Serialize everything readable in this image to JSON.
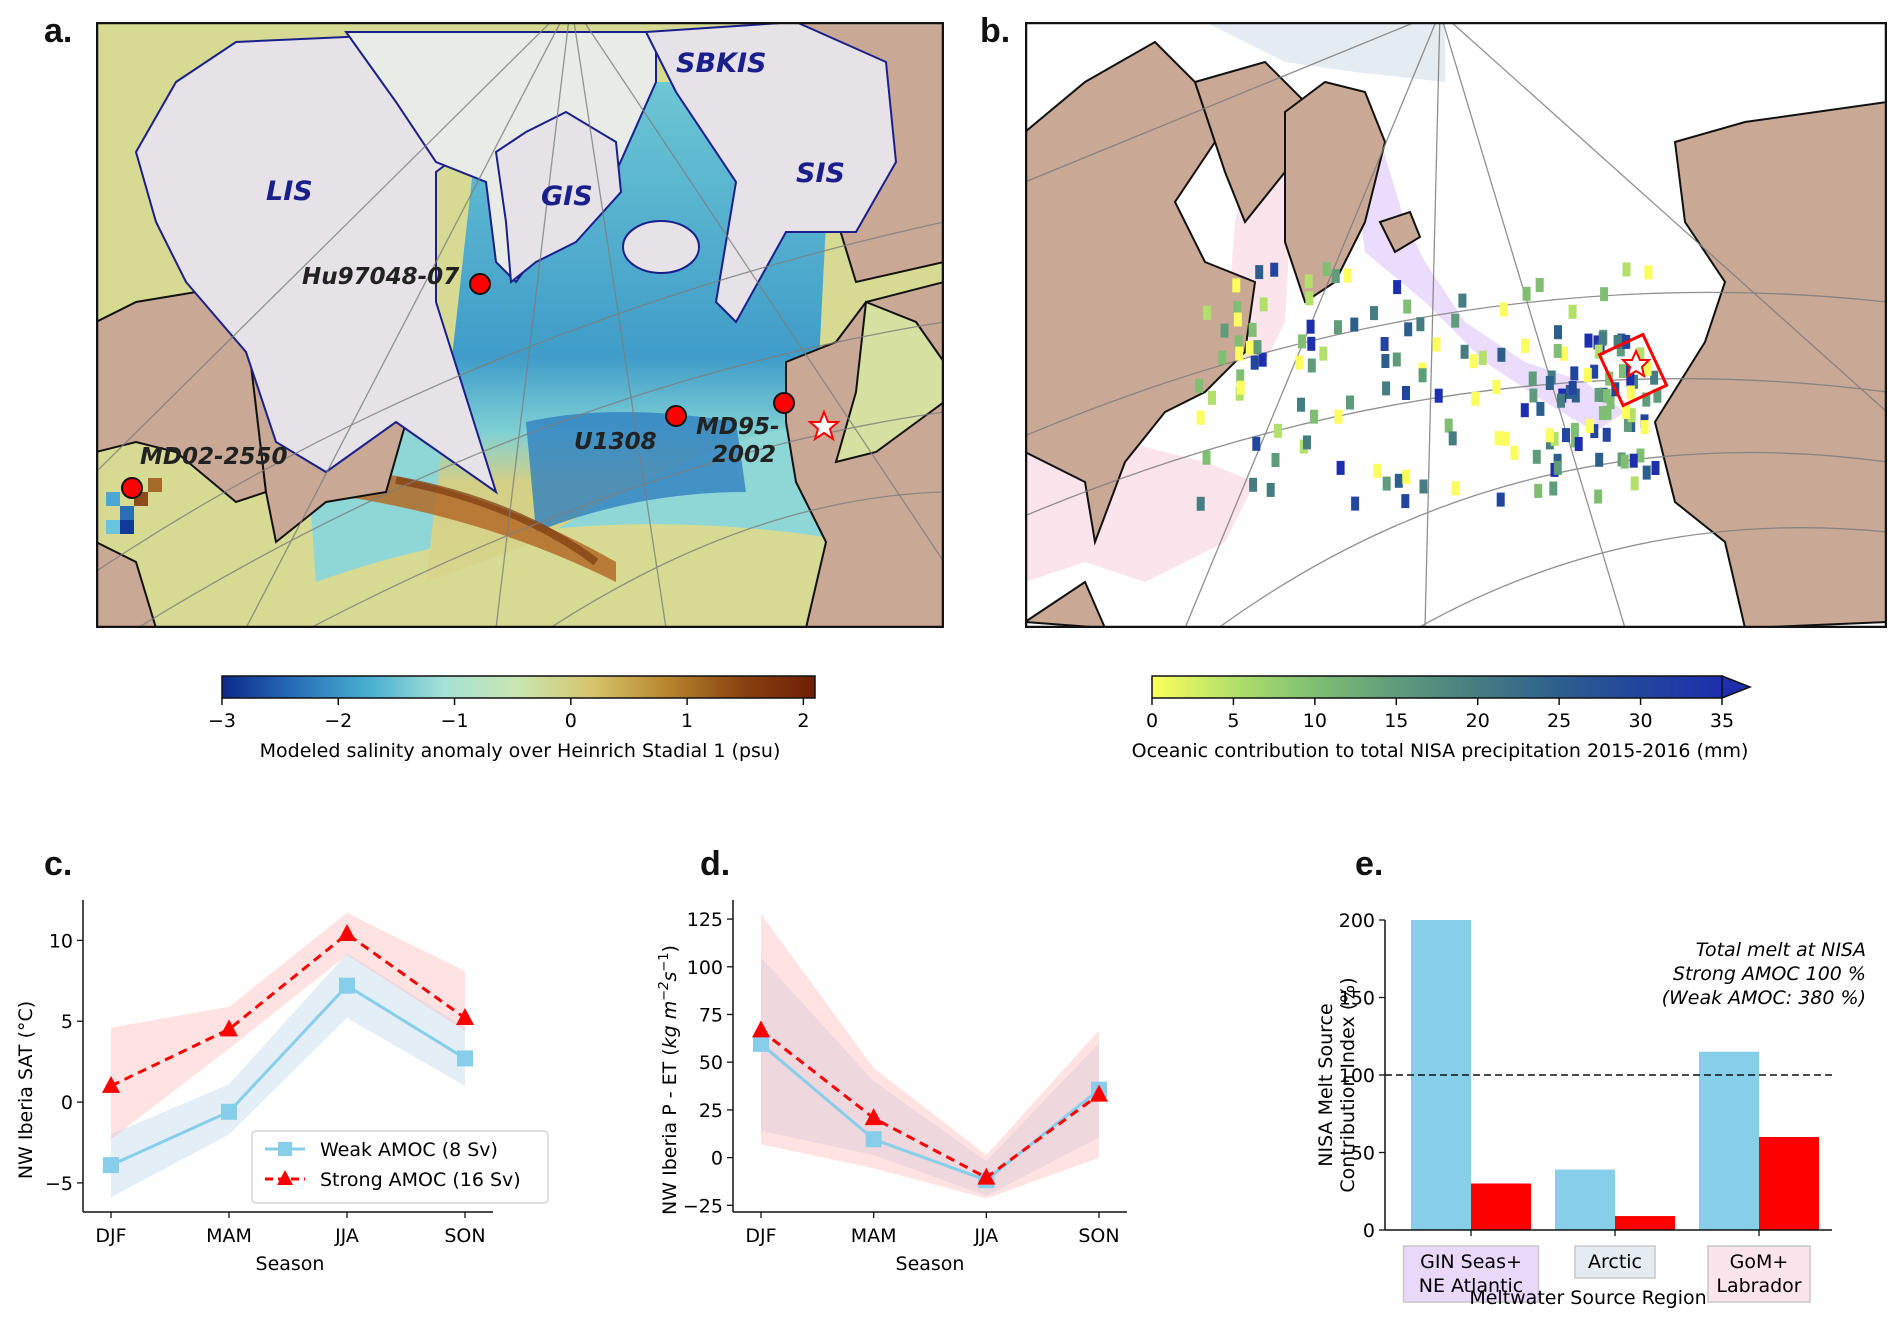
{
  "figure": {
    "panel_labels": [
      "a.",
      "b.",
      "c.",
      "d.",
      "e."
    ]
  },
  "panel_a": {
    "type": "map",
    "ice_sheet_labels": [
      "LIS",
      "GIS",
      "SBKIS",
      "SIS"
    ],
    "site_labels": [
      "Hu97048-07",
      "U1308",
      "MD95-\n2002",
      "MD02-2550"
    ],
    "site_label_lines": {
      "MD95": [
        "MD95-",
        "2002"
      ]
    },
    "target_marker": "star-icon",
    "colors": {
      "land": "#c9a896",
      "ice": "#e6e2e8",
      "ice_outline": "#1a1f8c",
      "label": "#1a1f8c",
      "site": "#ff0000"
    },
    "colorbar": {
      "ticks": [
        "−3",
        "−2",
        "−1",
        "0",
        "1",
        "2"
      ],
      "tick_values": [
        -3,
        -2,
        -1,
        0,
        1,
        2
      ],
      "range": [
        -3,
        2.1
      ],
      "label": "Modeled salinity anomaly over Heinrich Stadial 1 (psu)",
      "stops": [
        "#0c2a8c",
        "#2870b8",
        "#49b0d0",
        "#a6e2d6",
        "#c8e6b0",
        "#d6c46c",
        "#b7862e",
        "#8a4312",
        "#6e1f04"
      ]
    }
  },
  "panel_b": {
    "type": "map",
    "colors": {
      "land": "#c9a896",
      "arctic_region": "#e4ecf2",
      "gin_region": "#ead8fb",
      "gom_region": "#fbe4ec",
      "box": "#ff0000"
    },
    "colorbar": {
      "ticks": [
        "0",
        "5",
        "10",
        "15",
        "20",
        "25",
        "30",
        "35"
      ],
      "tick_values": [
        0,
        5,
        10,
        15,
        20,
        25,
        30,
        35
      ],
      "range": [
        0,
        35
      ],
      "extend": "max",
      "label": "Oceanic contribution to total NISA precipitation 2015-2016 (mm)",
      "stops": [
        "#fbfe5c",
        "#b2e06a",
        "#7fbe73",
        "#5f9c7c",
        "#467d82",
        "#2d5f8e",
        "#22459e",
        "#1e2fae"
      ]
    }
  },
  "chart_data": [
    {
      "id": "c",
      "type": "line",
      "title": "",
      "xlabel": "Season",
      "ylabel": "NW Iberia SAT (°C)",
      "categories": [
        "DJF",
        "MAM",
        "JJA",
        "SON"
      ],
      "ylim": [
        -6.8,
        12.5
      ],
      "yticks": [
        -5,
        0,
        5,
        10
      ],
      "ytick_labels": [
        "−5",
        "0",
        "5",
        "10"
      ],
      "grid": false,
      "legend": "lower-right",
      "series": [
        {
          "name": "Weak AMOC (8 Sv)",
          "color": "#87ceeb",
          "marker": "square",
          "linestyle": "solid",
          "values": [
            -3.9,
            -0.6,
            7.2,
            2.7
          ],
          "band_lower": [
            -5.9,
            -2.0,
            5.2,
            1.0
          ],
          "band_upper": [
            -2.0,
            1.1,
            9.2,
            4.6
          ]
        },
        {
          "name": "Strong AMOC (16 Sv)",
          "color": "#ff0000",
          "marker": "triangle",
          "linestyle": "dashed",
          "values": [
            1.0,
            4.5,
            10.4,
            5.2
          ],
          "band_lower": [
            -2.3,
            3.3,
            9.1,
            4.4
          ],
          "band_upper": [
            4.6,
            5.9,
            11.7,
            8.1
          ]
        }
      ]
    },
    {
      "id": "d",
      "type": "line",
      "title": "",
      "xlabel": "Season",
      "ylabel": "NW Iberia P - ET (kg m⁻²s⁻¹)",
      "ylabel_parts": {
        "plain": "NW Iberia P - ET (",
        "italic": "kg m",
        "sup1": "−2",
        "italic2": "s",
        "sup2": "−1",
        "close": ")"
      },
      "categories": [
        "DJF",
        "MAM",
        "JJA",
        "SON"
      ],
      "ylim": [
        -28.5,
        135
      ],
      "yticks": [
        -25,
        0,
        25,
        50,
        75,
        100,
        125
      ],
      "ytick_labels": [
        "−25",
        "0",
        "25",
        "50",
        "75",
        "100",
        "125"
      ],
      "grid": false,
      "series": [
        {
          "name": "Weak AMOC (8 Sv)",
          "color": "#87ceeb",
          "marker": "square",
          "linestyle": "solid",
          "values": [
            59.6,
            9.6,
            -11.8,
            35.6
          ],
          "band_lower": [
            14,
            1.4,
            -20,
            10.5
          ],
          "band_upper": [
            105,
            40,
            -1.8,
            60
          ]
        },
        {
          "name": "Strong AMOC (16 Sv)",
          "color": "#ff0000",
          "marker": "triangle",
          "linestyle": "dashed",
          "values": [
            66.7,
            20.7,
            -10.5,
            33.0
          ],
          "band_lower": [
            7,
            -5.6,
            -21.4,
            0
          ],
          "band_upper": [
            127.7,
            47,
            1.4,
            66.7
          ]
        }
      ]
    },
    {
      "id": "e",
      "type": "bar",
      "title": "",
      "xlabel": "Meltwater Source Region",
      "ylabel_lines": [
        "NISA Melt Source",
        "Contribution Index (%)"
      ],
      "categories": [
        "GIN Seas+\nNE Atlantic",
        "Arctic",
        "GoM+\nLabrador"
      ],
      "category_lines": [
        [
          "GIN Seas+",
          "NE Atlantic"
        ],
        [
          "Arctic"
        ],
        [
          "GoM+",
          "Labrador"
        ]
      ],
      "category_box_colors": [
        "#ead8fb",
        "#e4ecf2",
        "#fbe4ec"
      ],
      "ylim": [
        0,
        200
      ],
      "yticks": [
        0,
        50,
        100,
        150,
        200
      ],
      "ytick_labels": [
        "0",
        "50",
        "100",
        "150",
        "200"
      ],
      "reference_line": 100,
      "annotation_lines": [
        "Total melt at NISA",
        "Strong AMOC 100 %",
        "(Weak AMOC: 380 %)"
      ],
      "series": [
        {
          "name": "Weak AMOC",
          "color": "#87ceeb",
          "values": [
            200,
            39,
            115
          ]
        },
        {
          "name": "Strong AMOC",
          "color": "#ff0000",
          "values": [
            30,
            9,
            60
          ]
        }
      ]
    }
  ]
}
